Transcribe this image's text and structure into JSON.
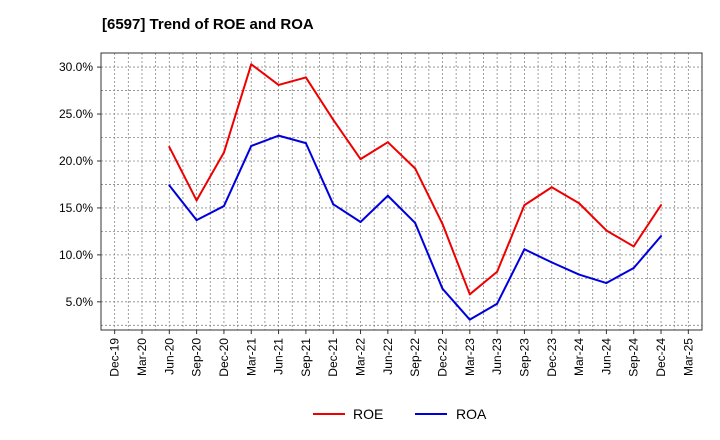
{
  "chart_data": {
    "type": "line",
    "title": "[6597]  Trend of ROE and ROA",
    "xlabel": "",
    "ylabel": "",
    "x_ticks": [
      "Dec-19",
      "Mar-20",
      "Jun-20",
      "Sep-20",
      "Dec-20",
      "Mar-21",
      "Jun-21",
      "Sep-21",
      "Dec-21",
      "Mar-22",
      "Jun-22",
      "Sep-22",
      "Dec-22",
      "Mar-23",
      "Jun-23",
      "Sep-23",
      "Dec-23",
      "Mar-24",
      "Jun-24",
      "Sep-24",
      "Dec-24",
      "Mar-25"
    ],
    "y_ticks": [
      "5.0%",
      "10.0%",
      "15.0%",
      "20.0%",
      "25.0%",
      "30.0%"
    ],
    "ylim": [
      2.0,
      31.5
    ],
    "grid": true,
    "legend_position": "bottom-center",
    "series": [
      {
        "name": "ROE",
        "color": "#ee0000",
        "points": [
          [
            "Jun-20",
            21.5
          ],
          [
            "Sep-20",
            15.8
          ],
          [
            "Dec-20",
            20.9
          ],
          [
            "Mar-21",
            30.3
          ],
          [
            "Jun-21",
            28.1
          ],
          [
            "Sep-21",
            28.9
          ],
          [
            "Dec-21",
            24.4
          ],
          [
            "Mar-22",
            20.2
          ],
          [
            "Jun-22",
            22.0
          ],
          [
            "Sep-22",
            19.2
          ],
          [
            "Dec-22",
            13.3
          ],
          [
            "Mar-23",
            5.8
          ],
          [
            "Jun-23",
            8.2
          ],
          [
            "Sep-23",
            15.3
          ],
          [
            "Dec-23",
            17.2
          ],
          [
            "Mar-24",
            15.5
          ],
          [
            "Jun-24",
            12.6
          ],
          [
            "Sep-24",
            10.9
          ],
          [
            "Dec-24",
            15.3
          ]
        ]
      },
      {
        "name": "ROA",
        "color": "#0000dd",
        "points": [
          [
            "Jun-20",
            17.4
          ],
          [
            "Sep-20",
            13.7
          ],
          [
            "Dec-20",
            15.2
          ],
          [
            "Mar-21",
            21.6
          ],
          [
            "Jun-21",
            22.7
          ],
          [
            "Sep-21",
            21.9
          ],
          [
            "Dec-21",
            15.4
          ],
          [
            "Mar-22",
            13.5
          ],
          [
            "Jun-22",
            16.3
          ],
          [
            "Sep-22",
            13.4
          ],
          [
            "Dec-22",
            6.4
          ],
          [
            "Mar-23",
            3.1
          ],
          [
            "Jun-23",
            4.8
          ],
          [
            "Sep-23",
            10.6
          ],
          [
            "Dec-23",
            9.2
          ],
          [
            "Mar-24",
            7.9
          ],
          [
            "Jun-24",
            7.0
          ],
          [
            "Sep-24",
            8.6
          ],
          [
            "Dec-24",
            12.0
          ]
        ]
      }
    ]
  }
}
